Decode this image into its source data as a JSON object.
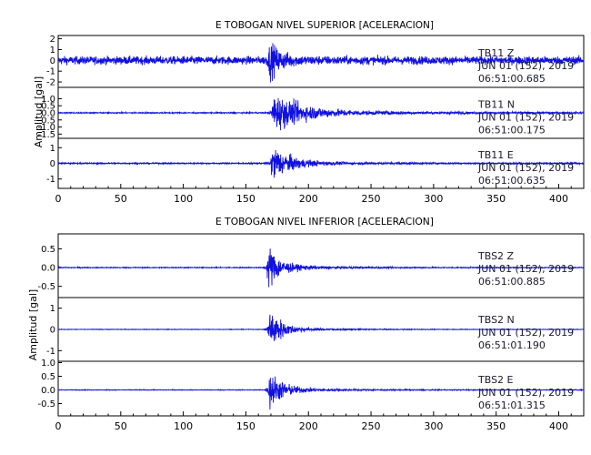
{
  "trace_color": "#1010e0",
  "chart_data": [
    {
      "type": "line",
      "title": "E TOBOGAN NIVEL SUPERIOR [ACELERACION]",
      "ylabel": "Amplitud [gal]",
      "xlim": [
        0,
        420
      ],
      "x_ticks": [
        "0",
        "50",
        "100",
        "150",
        "200",
        "250",
        "300",
        "350",
        "400"
      ],
      "series": [
        {
          "name": "TB11 Z",
          "station": "TB11",
          "component": "Z",
          "date": "JUN 01 (152), 2019",
          "time": "06:51:00.685",
          "ylim": [
            -2.5,
            2.3
          ],
          "y_ticks": [
            "2",
            "1",
            "0",
            "-1",
            "-2"
          ],
          "noise": 0.45,
          "peak": 2.0,
          "onset": 168,
          "decay": 9,
          "coda": 0.1
        },
        {
          "name": "TB11 N",
          "station": "TB11",
          "component": "N",
          "date": "JUN 01 (152), 2019",
          "time": "06:51:00.175",
          "ylim": [
            -1.8,
            1.8
          ],
          "y_ticks": [
            "1.0",
            "0.5",
            "0.0",
            "-0.5",
            "-1.0",
            "-1.5"
          ],
          "noise": 0.05,
          "peak": 1.6,
          "onset": 171,
          "decay": 24,
          "coda": 0.15
        },
        {
          "name": "TB11 E",
          "station": "TB11",
          "component": "E",
          "date": "JUN 01 (152), 2019",
          "time": "06:51:00.635",
          "ylim": [
            -1.6,
            1.6
          ],
          "y_ticks": [
            "1",
            "0",
            "-1"
          ],
          "noise": 0.05,
          "peak": 1.4,
          "onset": 170,
          "decay": 14,
          "coda": 0.12
        }
      ]
    },
    {
      "type": "line",
      "title": "E TOBOGAN NIVEL INFERIOR [ACELERACION]",
      "ylabel": "Amplitud [gal]",
      "xlim": [
        0,
        420
      ],
      "x_ticks": [
        "0",
        "50",
        "100",
        "150",
        "200",
        "250",
        "300",
        "350",
        "400"
      ],
      "series": [
        {
          "name": "TBS2 Z",
          "station": "TBS2",
          "component": "Z",
          "date": "JUN 01 (152), 2019",
          "time": "06:51:00.885",
          "ylim": [
            -0.8,
            0.9
          ],
          "y_ticks": [
            "0.5",
            "0.0",
            "-0.5"
          ],
          "noise": 0.015,
          "peak": 0.75,
          "onset": 167,
          "decay": 8,
          "coda": 0.1
        },
        {
          "name": "TBS2 N",
          "station": "TBS2",
          "component": "N",
          "date": "JUN 01 (152), 2019",
          "time": "06:51:01.190",
          "ylim": [
            -1.5,
            1.5
          ],
          "y_ticks": [
            "1",
            "0",
            "-1"
          ],
          "noise": 0.015,
          "peak": 1.4,
          "onset": 168,
          "decay": 9,
          "coda": 0.1
        },
        {
          "name": "TBS2 E",
          "station": "TBS2",
          "component": "E",
          "date": "JUN 01 (152), 2019",
          "time": "06:51:01.315",
          "ylim": [
            -0.95,
            1.05
          ],
          "y_ticks": [
            "1.0",
            "0.5",
            "0.0",
            "-0.5"
          ],
          "noise": 0.015,
          "peak": 0.9,
          "onset": 168,
          "decay": 10,
          "coda": 0.1
        }
      ]
    }
  ]
}
